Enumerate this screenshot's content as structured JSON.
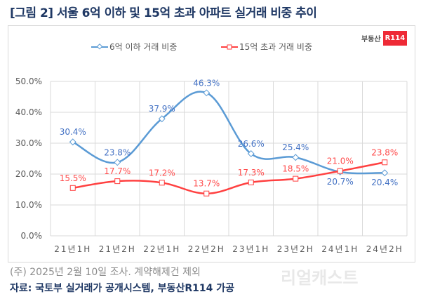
{
  "title": "[그림 2] 서울 6억 이하 및 15억 초과 아파트 실거래 비중 추이",
  "logo": {
    "text": "부동산",
    "badge": "R114"
  },
  "note": "(주) 2025년 2월 10일 조사. 계약해제건 제외",
  "source": "자료: 국토부 실거래가 공개시스템, 부동산R114 가공",
  "watermark": "리얼캐스트",
  "colors": {
    "series1": "#5b9bd5",
    "series2": "#ff4040",
    "label1": "#4472c4",
    "label2": "#ff4b4b"
  },
  "chart_data": {
    "type": "line",
    "title": "[그림 2] 서울 6억 이하 및 15억 초과 아파트 실거래 비중 추이",
    "categories": [
      "21년1H",
      "21년2H",
      "22년1H",
      "22년2H",
      "23년1H",
      "23년2H",
      "24년1H",
      "24년2H"
    ],
    "series": [
      {
        "name": "6억 이하 거래 비중",
        "values": [
          30.4,
          23.8,
          37.9,
          46.3,
          26.6,
          25.4,
          20.7,
          20.4
        ],
        "labels": [
          "30.4%",
          "23.8%",
          "37.9%",
          "46.3%",
          "26.6%",
          "25.4%",
          "20.7%",
          "20.4%"
        ]
      },
      {
        "name": "15억 초과 거래 비중",
        "values": [
          15.5,
          17.7,
          17.2,
          13.7,
          17.3,
          18.5,
          21.0,
          23.8
        ],
        "labels": [
          "15.5%",
          "17.7%",
          "17.2%",
          "13.7%",
          "17.3%",
          "18.5%",
          "21.0%",
          "23.8%"
        ]
      }
    ],
    "yticks": [
      "0.0%",
      "10.0%",
      "20.0%",
      "30.0%",
      "40.0%",
      "50.0%"
    ],
    "ylim": [
      0,
      50
    ],
    "legend": "top-center",
    "grid": true
  }
}
